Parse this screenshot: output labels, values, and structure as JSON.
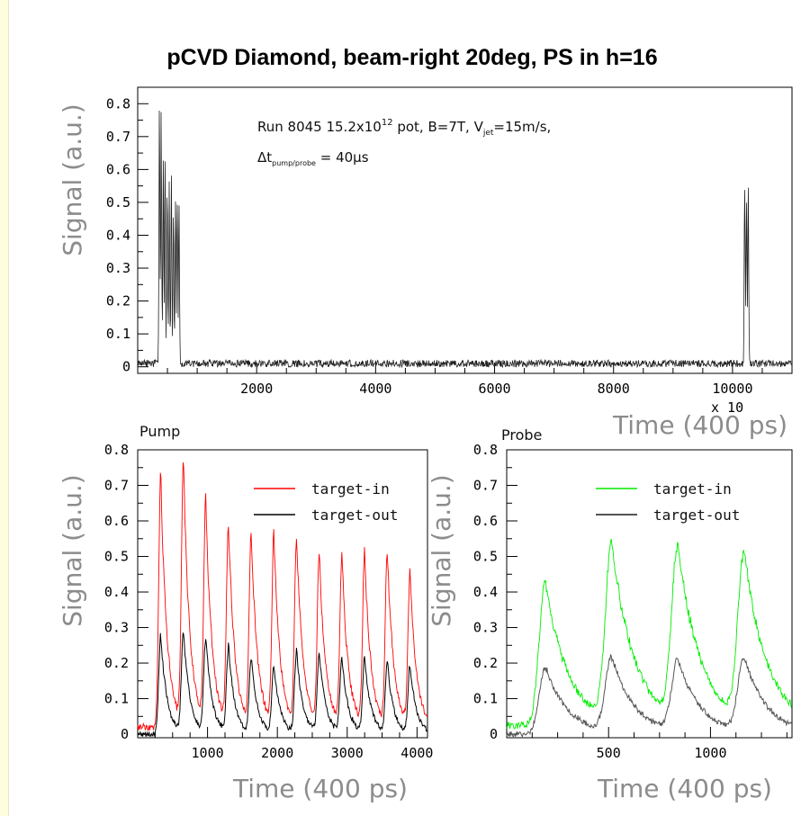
{
  "title": "pCVD Diamond, beam-right 20deg, PS in h=16",
  "annotation": {
    "line1": "Run 8045 15.2x10",
    "line1_sup": "12",
    "line1_rest": " pot, B=7T, V",
    "line1_sub": "jet",
    "line1_end": "=15m/s,",
    "line2_prefix": "Δt",
    "line2_sub": "pump/probe",
    "line2_end": " = 40μs"
  },
  "chart_data": [
    {
      "id": "overview",
      "type": "line",
      "title": "",
      "xlabel": "Time (400 ps)",
      "ylabel": "Signal (a.u.)",
      "x_multiplier": "x 10",
      "xlim": [
        0,
        11000
      ],
      "ylim": [
        -0.02,
        0.85
      ],
      "xticks": [
        2000,
        4000,
        6000,
        8000,
        10000
      ],
      "yticks": [
        0,
        0.1,
        0.2,
        0.3,
        0.4,
        0.5,
        0.6,
        0.7,
        0.8
      ],
      "ytick_labels": [
        "0",
        "0.1",
        "0.2",
        "0.3",
        "0.4",
        "0.5",
        "0.6",
        "0.7",
        "0.8"
      ],
      "xtick_labels": [
        "2000",
        "4000",
        "6000",
        "8000",
        "10000"
      ],
      "series": [
        {
          "name": "",
          "color": "#222222",
          "baseline": 0.01,
          "pulse_width": 11,
          "pulses": [
            {
              "x": 365,
              "peak": 0.75
            },
            {
              "x": 395,
              "peak": 0.73
            },
            {
              "x": 430,
              "peak": 0.62
            },
            {
              "x": 460,
              "peak": 0.56
            },
            {
              "x": 495,
              "peak": 0.55
            },
            {
              "x": 530,
              "peak": 0.55
            },
            {
              "x": 565,
              "peak": 0.53
            },
            {
              "x": 600,
              "peak": 0.5
            },
            {
              "x": 635,
              "peak": 0.49
            },
            {
              "x": 665,
              "peak": 0.5
            },
            {
              "x": 695,
              "peak": 0.46
            },
            {
              "x": 10205,
              "peak": 0.53
            },
            {
              "x": 10235,
              "peak": 0.51
            },
            {
              "x": 10265,
              "peak": 0.5
            }
          ]
        }
      ]
    },
    {
      "id": "pump",
      "type": "line",
      "pad_label": "Pump",
      "xlabel": "Time (400 ps)",
      "ylabel": "Signal (a.u.)",
      "xlim": [
        0,
        4150
      ],
      "ylim": [
        -0.01,
        0.8
      ],
      "xticks": [
        1000,
        2000,
        3000,
        4000
      ],
      "xtick_labels": [
        "1000",
        "2000",
        "3000",
        "4000"
      ],
      "yticks": [
        0,
        0.1,
        0.2,
        0.3,
        0.4,
        0.5,
        0.6,
        0.7,
        0.8
      ],
      "ytick_labels": [
        "0",
        "0.1",
        "0.2",
        "0.3",
        "0.4",
        "0.5",
        "0.6",
        "0.7",
        "0.8"
      ],
      "pulse_x": [
        330,
        655,
        975,
        1300,
        1625,
        1950,
        2275,
        2600,
        2925,
        3250,
        3575,
        3900
      ],
      "series": [
        {
          "name": "target-in",
          "color": "#ff0000",
          "baseline": 0.02,
          "peaks": [
            0.73,
            0.75,
            0.64,
            0.58,
            0.56,
            0.55,
            0.55,
            0.5,
            0.49,
            0.5,
            0.51,
            0.45
          ]
        },
        {
          "name": "target-out",
          "color": "#000000",
          "baseline": 0.0,
          "peaks": [
            0.28,
            0.29,
            0.27,
            0.24,
            0.21,
            0.19,
            0.23,
            0.23,
            0.21,
            0.21,
            0.2,
            0.19
          ]
        }
      ],
      "legend_position": "top-right"
    },
    {
      "id": "probe",
      "type": "line",
      "pad_label": "Probe",
      "xlabel": "Time (400 ps)",
      "ylabel": "Signal (a.u.)",
      "xlim": [
        0,
        1400
      ],
      "ylim": [
        -0.01,
        0.8
      ],
      "xticks": [
        500,
        1000
      ],
      "xtick_labels": [
        "500",
        "1000"
      ],
      "yticks": [
        0,
        0.1,
        0.2,
        0.3,
        0.4,
        0.5,
        0.6,
        0.7,
        0.8
      ],
      "ytick_labels": [
        "0",
        "0.1",
        "0.2",
        "0.3",
        "0.4",
        "0.5",
        "0.6",
        "0.7",
        "0.8"
      ],
      "pulse_x": [
        190,
        515,
        840,
        1165
      ],
      "series": [
        {
          "name": "target-in",
          "color": "#00ee00",
          "baseline": 0.025,
          "peaks": [
            0.43,
            0.52,
            0.51,
            0.49
          ]
        },
        {
          "name": "target-out",
          "color": "#555555",
          "baseline": 0.0,
          "peaks": [
            0.19,
            0.21,
            0.2,
            0.21
          ]
        }
      ],
      "legend_position": "top-right"
    }
  ]
}
